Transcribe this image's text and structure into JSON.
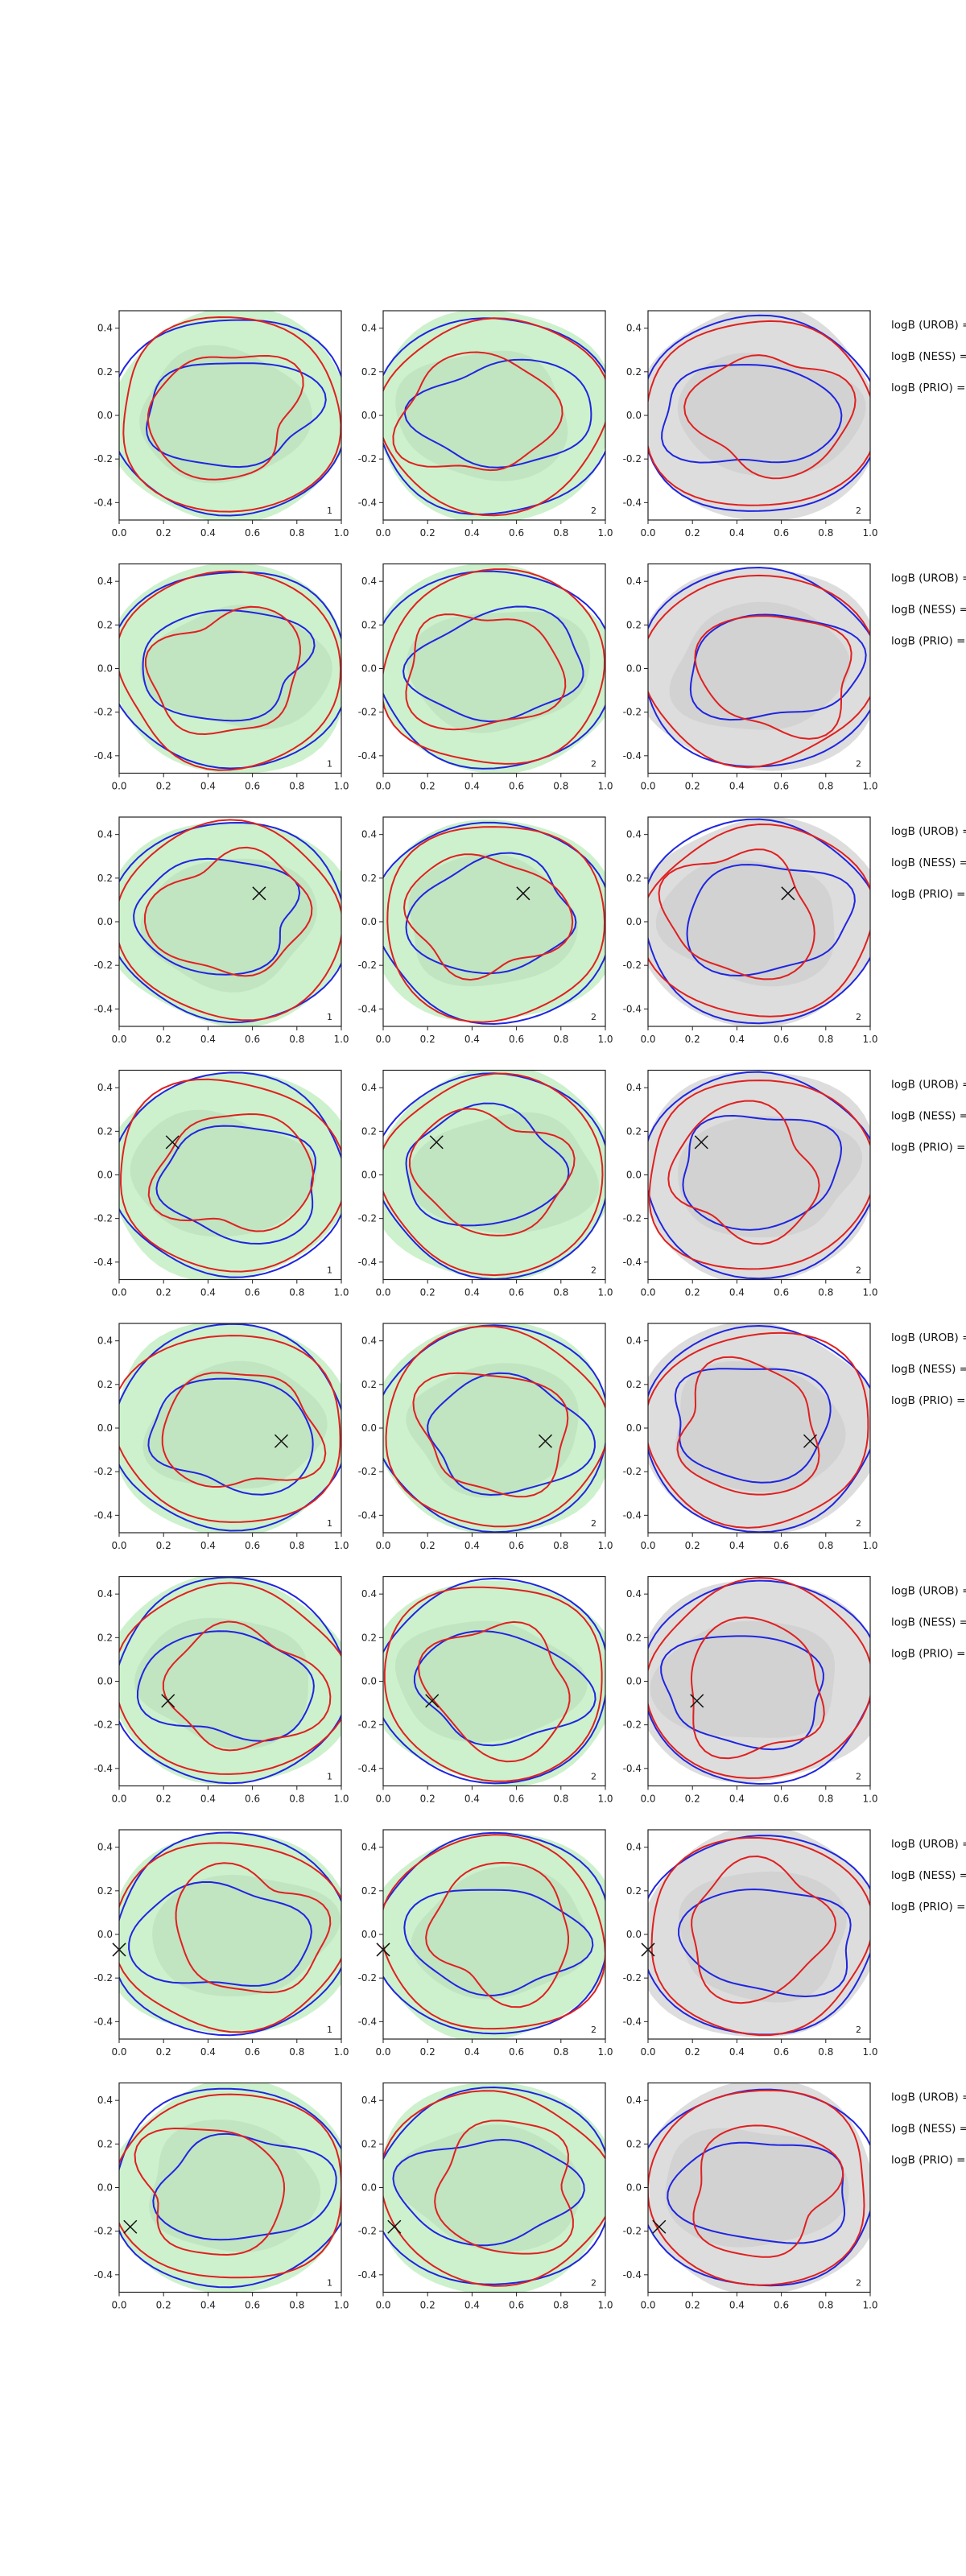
{
  "chart_data": {
    "type": "contour-grid",
    "rows": 8,
    "cols": 3,
    "x_ticks": [
      "0.0",
      "0.2",
      "0.4",
      "0.6",
      "0.8",
      "1.0"
    ],
    "y_ticks": [
      "0.4",
      "0.2",
      "0.0",
      "-0.2",
      "-0.4"
    ],
    "xlim": [
      0,
      1
    ],
    "ylim": [
      -0.48,
      0.48
    ],
    "panel_ids": [
      "1",
      "2",
      "2"
    ],
    "fill_colors": [
      "#c6efc6",
      "#c6efc6",
      "#d9d9d9"
    ],
    "line_colors": {
      "model_a": "#e02020",
      "model_b": "#1f25e0"
    },
    "bayes_factor_labels": [
      "logB (UROB) =",
      "logB (NESS) =",
      "logB (PRIO) ="
    ],
    "markers": [
      null,
      null,
      [
        0.63,
        0.13
      ],
      [
        0.24,
        0.15
      ],
      [
        0.73,
        -0.06
      ],
      [
        0.22,
        -0.09
      ],
      [
        0.0,
        -0.07
      ],
      [
        0.05,
        -0.18
      ]
    ]
  }
}
